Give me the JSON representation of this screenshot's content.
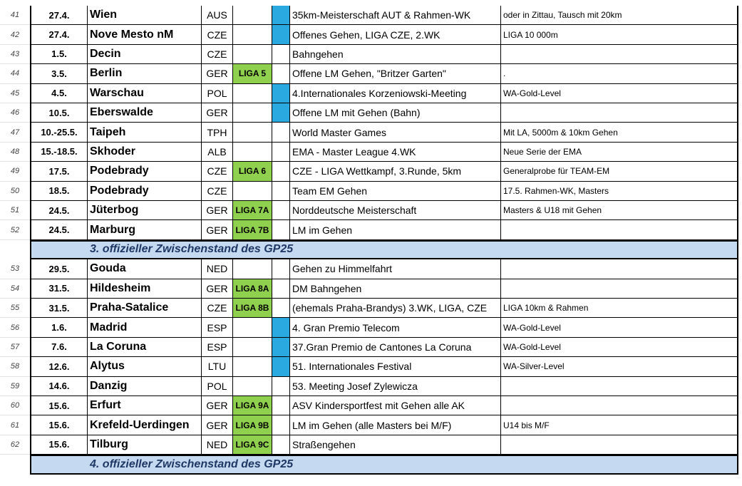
{
  "rows": [
    {
      "num": "41",
      "date": "27.4.",
      "city": "Wien",
      "country": "AUS",
      "liga": "",
      "blue": true,
      "event": "35km-Meisterschaft AUT & Rahmen-WK",
      "note": "oder in Zittau, Tausch mit 20km"
    },
    {
      "num": "42",
      "date": "27.4.",
      "city": "Nove Mesto nM",
      "country": "CZE",
      "liga": "",
      "blue": true,
      "event": "Offenes Gehen, LIGA CZE, 2.WK",
      "note": "LIGA 10 000m"
    },
    {
      "num": "43",
      "date": "1.5.",
      "city": "Decin",
      "country": "CZE",
      "liga": "",
      "blue": false,
      "event": "Bahngehen",
      "note": ""
    },
    {
      "num": "44",
      "date": "3.5.",
      "city": "Berlin",
      "country": "GER",
      "liga": "LIGA 5",
      "blue": false,
      "event": "Offene LM Gehen, \"Britzer Garten\"",
      "note": "."
    },
    {
      "num": "45",
      "date": "4.5.",
      "city": "Warschau",
      "country": "POL",
      "liga": "",
      "blue": true,
      "event": "4.Internationales Korzeniowski-Meeting",
      "note": "WA-Gold-Level"
    },
    {
      "num": "46",
      "date": "10.5.",
      "city": "Eberswalde",
      "country": "GER",
      "liga": "",
      "blue": true,
      "event": "Offene LM mit Gehen (Bahn)",
      "note": ""
    },
    {
      "num": "47",
      "date": "10.-25.5.",
      "city": "Taipeh",
      "country": "TPH",
      "liga": "",
      "blue": false,
      "event": "World Master Games",
      "note": "Mit LA, 5000m & 10km Gehen"
    },
    {
      "num": "48",
      "date": "15.-18.5.",
      "city": "Skhoder",
      "country": "ALB",
      "liga": "",
      "blue": false,
      "event": "EMA - Master League 4.WK",
      "note": "Neue Serie der EMA"
    },
    {
      "num": "49",
      "date": "17.5.",
      "city": "Podebrady",
      "country": "CZE",
      "liga": "LIGA 6",
      "blue": false,
      "event": "CZE - LIGA Wettkampf, 3.Runde,  5km",
      "note": "Generalprobe für TEAM-EM"
    },
    {
      "num": "50",
      "date": "18.5.",
      "city": "Podebrady",
      "country": "CZE",
      "liga": "",
      "blue": false,
      "event": "Team EM Gehen",
      "note": "17.5. Rahmen-WK, Masters"
    },
    {
      "num": "51",
      "date": "24.5.",
      "city": "Jüterbog",
      "country": "GER",
      "liga": "LIGA 7A",
      "blue": false,
      "event": "Norddeutsche Meisterschaft",
      "note": "Masters & U18 mit Gehen"
    },
    {
      "num": "52",
      "date": "24.5.",
      "city": "Marburg",
      "country": "GER",
      "liga": "LIGA 7B",
      "blue": false,
      "event": "LM im Gehen",
      "note": ""
    },
    {
      "banner": "3. offizieller Zwischenstand des GP25"
    },
    {
      "num": "53",
      "date": "29.5.",
      "city": "Gouda",
      "country": "NED",
      "liga": "",
      "blue": false,
      "event": "Gehen zu Himmelfahrt",
      "note": ""
    },
    {
      "num": "54",
      "date": "31.5.",
      "city": "Hildesheim",
      "country": "GER",
      "liga": "LIGA 8A",
      "blue": false,
      "event": "DM Bahngehen",
      "note": ""
    },
    {
      "num": "55",
      "date": "31.5.",
      "city": "Praha-Satalice",
      "country": "CZE",
      "liga": "LIGA 8B",
      "blue": false,
      "event": "(ehemals Praha-Brandys) 3.WK, LIGA, CZE",
      "note": "LIGA 10km & Rahmen"
    },
    {
      "num": "56",
      "date": "1.6.",
      "city": "Madrid",
      "country": "ESP",
      "liga": "",
      "blue": true,
      "event": "4. Gran Premio Telecom",
      "note": "WA-Gold-Level"
    },
    {
      "num": "57",
      "date": "7.6.",
      "city": "La Coruna",
      "country": "ESP",
      "liga": "",
      "blue": true,
      "event": "37.Gran Premio de Cantones La Coruna",
      "note": "WA-Gold-Level"
    },
    {
      "num": "58",
      "date": "12.6.",
      "city": "Alytus",
      "country": "LTU",
      "liga": "",
      "blue": true,
      "event": "51. Internationales Festival",
      "note": "WA-Silver-Level"
    },
    {
      "num": "59",
      "date": "14.6.",
      "city": "Danzig",
      "country": "POL",
      "liga": "",
      "blue": false,
      "event": "53. Meeting Josef Zylewicza",
      "note": ""
    },
    {
      "num": "60",
      "date": "15.6.",
      "city": "Erfurt",
      "country": "GER",
      "liga": "LIGA 9A",
      "blue": false,
      "event": "ASV Kindersportfest mit Gehen alle AK",
      "note": ""
    },
    {
      "num": "61",
      "date": "15.6.",
      "city": "Krefeld-Uerdingen",
      "country": "GER",
      "liga": "LIGA 9B",
      "blue": false,
      "event": "LM im Gehen   (alle Masters bei M/F)",
      "note": "U14 bis M/F"
    },
    {
      "num": "62",
      "date": "15.6.",
      "city": "Tilburg",
      "country": "NED",
      "liga": "LIGA 9C",
      "blue": false,
      "event": "Straßengehen",
      "note": ""
    },
    {
      "banner": "4. offizieller Zwischenstand des GP25"
    }
  ],
  "colors": {
    "liga": "#8fd14f",
    "blue_marker": "#2aa8e0",
    "banner": "#c5d9f1",
    "banner_text": "#1f3864"
  }
}
